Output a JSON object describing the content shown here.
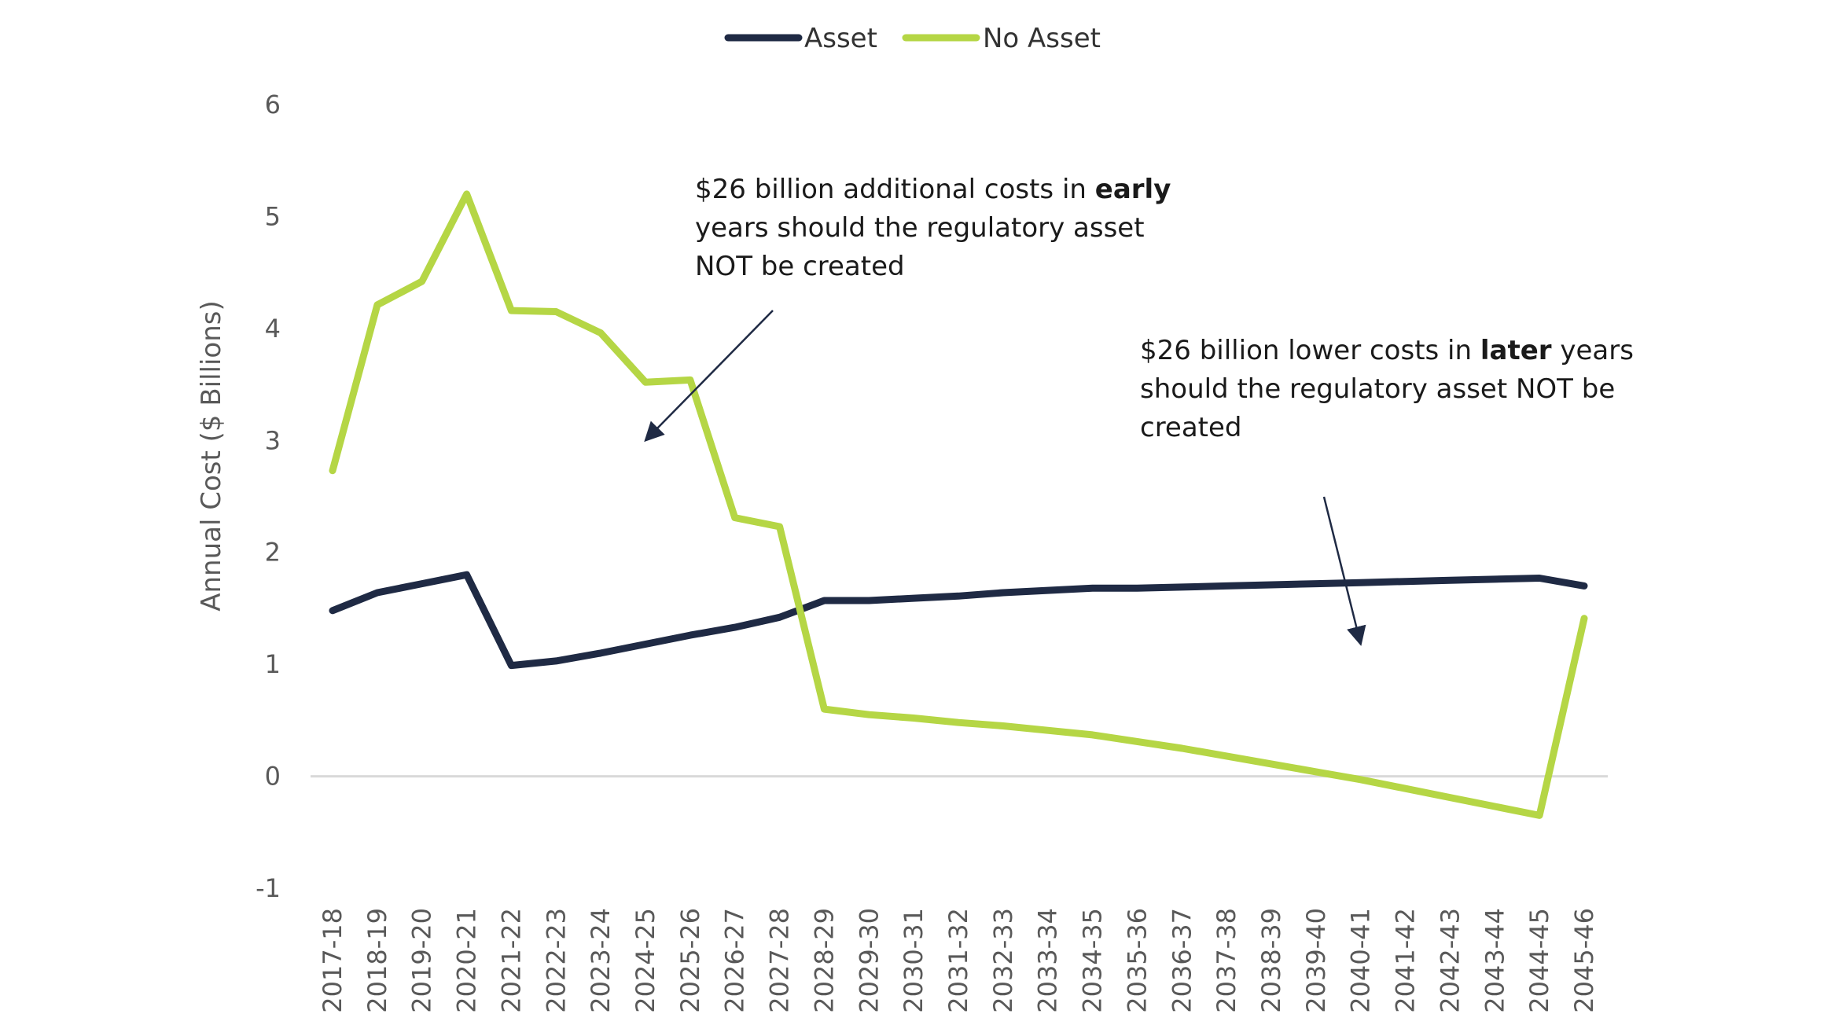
{
  "chart_data": {
    "type": "line",
    "title": "",
    "xlabel": "",
    "ylabel": "Annual Cost ($ Billions)",
    "ylim": [
      -1,
      6
    ],
    "yticks": [
      "-1",
      "0",
      "1",
      "2",
      "3",
      "4",
      "5",
      "6"
    ],
    "legend_position": "top-center",
    "categories": [
      "2017-18",
      "2018-19",
      "2019-20",
      "2020-21",
      "2021-22",
      "2022-23",
      "2023-24",
      "2024-25",
      "2025-26",
      "2026-27",
      "2027-28",
      "2028-29",
      "2029-30",
      "2030-31",
      "2031-32",
      "2032-33",
      "2033-34",
      "2034-35",
      "2035-36",
      "2036-37",
      "2037-38",
      "2038-39",
      "2039-40",
      "2040-41",
      "2041-42",
      "2042-43",
      "2043-44",
      "2044-45",
      "2045-46"
    ],
    "series": [
      {
        "name": "Asset",
        "color": "#1f2a44",
        "values": [
          1.48,
          1.64,
          1.72,
          1.8,
          0.99,
          1.03,
          1.1,
          1.18,
          1.26,
          1.33,
          1.42,
          1.57,
          1.57,
          1.59,
          1.61,
          1.64,
          1.66,
          1.68,
          1.68,
          1.69,
          1.7,
          1.71,
          1.72,
          1.73,
          1.74,
          1.75,
          1.76,
          1.77,
          1.7
        ]
      },
      {
        "name": "No Asset",
        "color": "#b5d645",
        "values": [
          2.73,
          4.21,
          4.42,
          5.2,
          4.16,
          4.15,
          3.96,
          3.52,
          3.54,
          2.31,
          2.23,
          0.6,
          0.55,
          0.52,
          0.48,
          0.45,
          0.41,
          0.37,
          0.31,
          0.25,
          0.18,
          0.11,
          0.04,
          -0.03,
          -0.11,
          -0.19,
          -0.27,
          -0.35,
          1.41
        ]
      }
    ],
    "annotations": [
      {
        "id": "early",
        "lines": [
          [
            {
              "text": "$26 billion additional costs in ",
              "bold": false
            },
            {
              "text": "early",
              "bold": true
            }
          ],
          [
            {
              "text": "years should the regulatory asset",
              "bold": false
            }
          ],
          [
            {
              "text": "NOT be created",
              "bold": false
            }
          ]
        ],
        "arrow_to": {
          "x": "2024-25",
          "y": 3.0
        }
      },
      {
        "id": "later",
        "lines": [
          [
            {
              "text": "$26 billion lower costs in ",
              "bold": false
            },
            {
              "text": "later",
              "bold": true
            },
            {
              "text": " years",
              "bold": false
            }
          ],
          [
            {
              "text": "should the regulatory asset NOT be",
              "bold": false
            }
          ],
          [
            {
              "text": "created",
              "bold": false
            }
          ]
        ],
        "arrow_to": {
          "x": "2040-41",
          "y": 1.18
        }
      }
    ]
  },
  "colors": {
    "asset": "#1f2a44",
    "no_asset": "#b5d645",
    "zero_line": "#d9d9d9",
    "arrow": "#1f2a44"
  }
}
